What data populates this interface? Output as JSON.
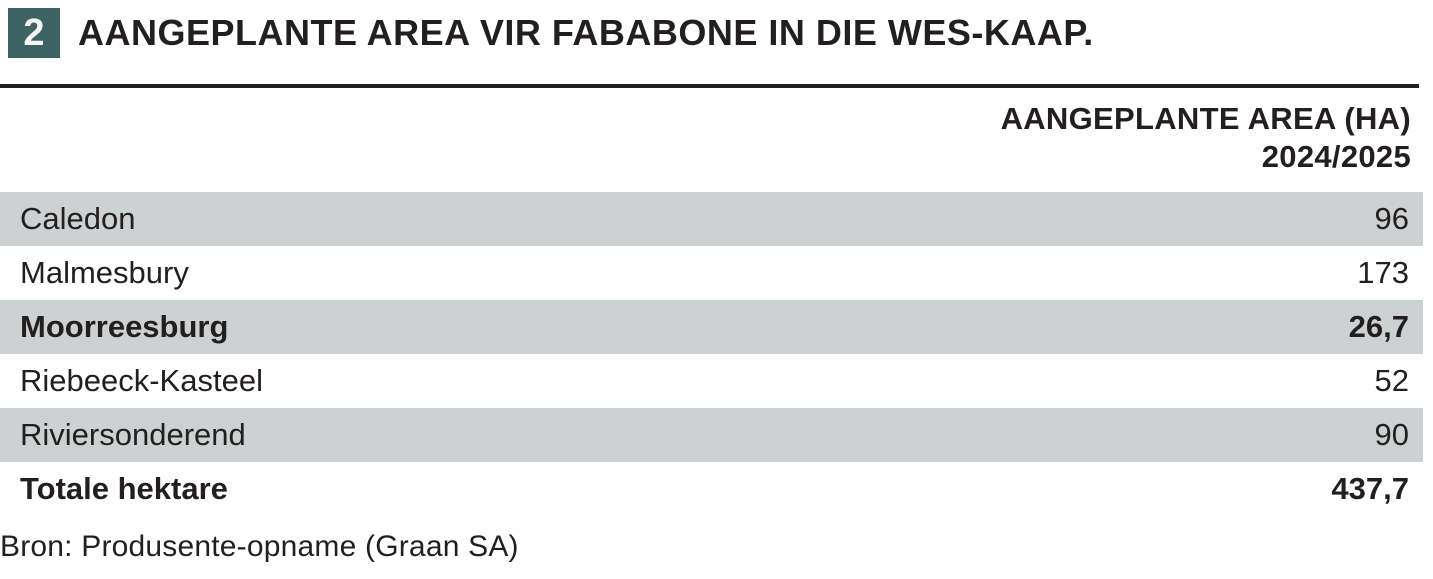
{
  "figure": {
    "badge_number": "2",
    "title": "AANGEPLANTE AREA VIR FABABONE IN DIE WES-KAAP."
  },
  "table": {
    "column_header": {
      "line1": "AANGEPLANTE AREA (HA)",
      "line2": "2024/2025"
    },
    "rows": [
      {
        "name": "Caledon",
        "value": "96"
      },
      {
        "name": "Malmesbury",
        "value": "173"
      },
      {
        "name": "Moorreesburg",
        "value": "26,7"
      },
      {
        "name": "Riebeeck-Kasteel",
        "value": "52"
      },
      {
        "name": "Riviersonderend",
        "value": "90"
      },
      {
        "name": "Totale hektare",
        "value": "437,7"
      }
    ]
  },
  "source": "Bron: Produsente-opname (Graan SA)",
  "colors": {
    "accent_teal": "#3d6464",
    "row_gray": "#cdd1d1",
    "text": "#231f20"
  }
}
